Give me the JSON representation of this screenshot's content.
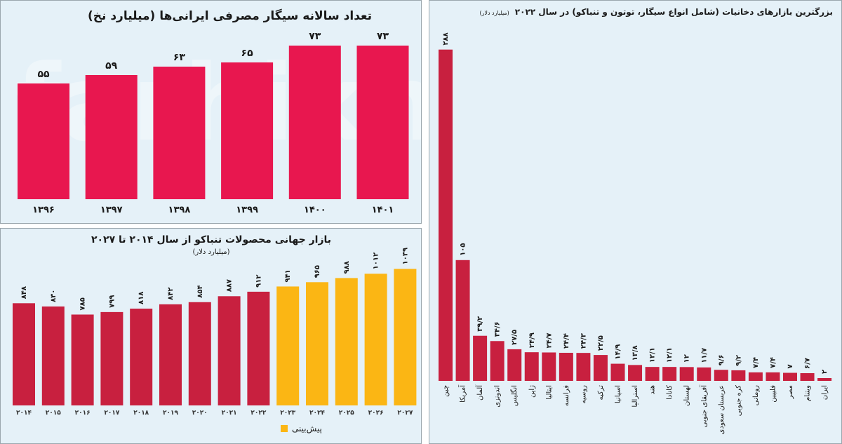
{
  "watermark": "farhikhtegan",
  "colors": {
    "pink": "#e8174f",
    "red": "#c8203f",
    "yellow": "#fbb614",
    "text": "#1a1a1a"
  },
  "chart_data": [
    {
      "type": "bar",
      "title": "تعداد سالانه سیگار مصرفی ایرانی‌ها  (میلیارد نخ)",
      "xlabel": "",
      "ylabel": "میلیارد نخ",
      "categories": [
        "۱۳۹۶",
        "۱۳۹۷",
        "۱۳۹۸",
        "۱۳۹۹",
        "۱۴۰۰",
        "۱۴۰۱"
      ],
      "values": [
        55,
        59,
        63,
        65,
        73,
        73
      ],
      "ylim": [
        0,
        80
      ]
    },
    {
      "type": "bar",
      "title": "بازار جهانی محصولات تنباکو از سال ۲۰۱۴ تا ۲۰۲۷",
      "subtitle": "(میلیارد دلار)",
      "categories": [
        "۲۰۱۴",
        "۲۰۱۵",
        "۲۰۱۶",
        "۲۰۱۷",
        "۲۰۱۸",
        "۲۰۱۹",
        "۲۰۲۰",
        "۲۰۲۱",
        "۲۰۲۲",
        "۲۰۲۳",
        "۲۰۲۴",
        "۲۰۲۵",
        "۲۰۲۶",
        "۲۰۲۷"
      ],
      "values": [
        848,
        830,
        785,
        799,
        818,
        842,
        854,
        887,
        912,
        941,
        965,
        988,
        1012,
        1039
      ],
      "forecast": [
        false,
        false,
        false,
        false,
        false,
        false,
        false,
        false,
        false,
        true,
        true,
        true,
        true,
        true
      ],
      "legend": "پیش‌بینی",
      "legend_position": "bottom",
      "ylim": [
        280,
        1050
      ]
    },
    {
      "type": "bar",
      "title": "بزرگترین بازارهای دخانیات (شامل انواع سیگار، توتون و تنباکو) در سال ۲۰۲۲",
      "unit": "(میلیارد دلار)",
      "categories": [
        "چین",
        "آمریکا",
        "آلمان",
        "اندونزی",
        "انگلیس",
        "ژاپن",
        "ایتالیا",
        "فرانسه",
        "روسیه",
        "ترکیه",
        "اسپانیا",
        "استرالیا",
        "هند",
        "کانادا",
        "لهستان",
        "آفریقای جنوبی",
        "عربستان سعودی",
        "کره جنوبی",
        "رومانی",
        "فلیپین",
        "مصر",
        "ویتنام",
        "ایران"
      ],
      "values": [
        288,
        105,
        39.2,
        34.6,
        27.5,
        24.9,
        24.7,
        24.4,
        24.3,
        22.5,
        14.9,
        13.8,
        12.1,
        12.1,
        12,
        11.7,
        9.6,
        9.2,
        7.4,
        7.4,
        7.0,
        6.7,
        2
      ],
      "ylim": [
        0,
        290
      ]
    }
  ]
}
